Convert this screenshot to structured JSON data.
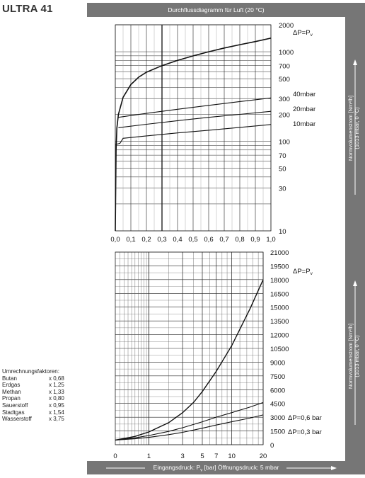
{
  "header": {
    "product": "ULTRA 41",
    "diagram_title": "Durchflussdiagramm für Luft (20 °C)",
    "bottom_label": "Eingangsdruck: Pv [bar] Öffnungsdruck: 5 mbar",
    "side_label_top": [
      "Normvolumenstrom [Nm³/h]",
      "(1013 mbar, 0 °C)"
    ],
    "side_label_bottom": [
      "Normvolumenstrom [Nm³/h]",
      "(1013 mbar, 0 °C)"
    ]
  },
  "conversion_factors": {
    "title": "Umrechnungsfaktoren:",
    "items": [
      {
        "gas": "Butan",
        "factor": "x 0,68"
      },
      {
        "gas": "Erdgas",
        "factor": "x 1,25"
      },
      {
        "gas": "Methan",
        "factor": "x 1,33"
      },
      {
        "gas": "Propan",
        "factor": "x 0,80"
      },
      {
        "gas": "Sauerstoff",
        "factor": "x 0,95"
      },
      {
        "gas": "Stadtgas",
        "factor": "x 1,54"
      },
      {
        "gas": "Wasserstoff",
        "factor": "x 3,75"
      }
    ]
  },
  "chart_data": [
    {
      "type": "line",
      "yscale": "log",
      "xlim": [
        0,
        1.0
      ],
      "ylim": [
        10,
        2000
      ],
      "x_ticks": [
        0,
        0.1,
        0.2,
        0.3,
        0.4,
        0.5,
        0.6,
        0.7,
        0.8,
        0.9,
        1.0
      ],
      "x_tick_labels": [
        "0,0",
        "0,1",
        "0,2",
        "0,3",
        "0,4",
        "0,5",
        "0,6",
        "0,7",
        "0,8",
        "0,9",
        "1,0"
      ],
      "y_tick_labels": [
        "2000",
        "1000",
        "700",
        "500",
        "300",
        "200",
        "100",
        "70",
        "50",
        "30",
        "10"
      ],
      "y_tick_values": [
        2000,
        1000,
        700,
        500,
        300,
        200,
        100,
        70,
        50,
        30,
        10
      ],
      "highlight_x": 0.3,
      "series": [
        {
          "name": "ΔP=Pv",
          "x": [
            0.0,
            0.005,
            0.01,
            0.02,
            0.05,
            0.1,
            0.15,
            0.2,
            0.3,
            0.4,
            0.5,
            0.6,
            0.7,
            0.8,
            0.9,
            1.0
          ],
          "y": [
            10,
            80,
            140,
            200,
            310,
            430,
            520,
            590,
            700,
            800,
            900,
            1000,
            1100,
            1200,
            1300,
            1420
          ]
        },
        {
          "name": "40mbar",
          "x": [
            0.02,
            0.2,
            0.4,
            0.6,
            0.8,
            1.0
          ],
          "y": [
            185,
            205,
            228,
            252,
            278,
            305
          ]
        },
        {
          "name": "20mbar",
          "x": [
            0.02,
            0.2,
            0.4,
            0.6,
            0.8,
            1.0
          ],
          "y": [
            142,
            155,
            170,
            185,
            200,
            216
          ]
        },
        {
          "name": "10mbar",
          "x": [
            0.0,
            0.03,
            0.05,
            0.2,
            0.4,
            0.6,
            0.8,
            1.0
          ],
          "y": [
            92,
            95,
            108,
            115,
            124,
            133,
            143,
            154
          ]
        }
      ],
      "series_labels": [
        "ΔP=Pv",
        "40mbar",
        "20mbar",
        "10mbar"
      ]
    },
    {
      "type": "line",
      "xscale": "log1p",
      "xlim": [
        0,
        20
      ],
      "ylim": [
        0,
        21000
      ],
      "x_ticks": [
        0,
        1,
        3,
        5,
        7,
        10,
        20
      ],
      "x_tick_labels": [
        "0",
        "1",
        "3",
        "5",
        "7",
        "10",
        "20"
      ],
      "y_tick_values": [
        21000,
        19500,
        18000,
        16500,
        15000,
        13500,
        12000,
        10500,
        9000,
        7500,
        6000,
        4500,
        3000,
        1500,
        0
      ],
      "y_tick_labels": [
        "21000",
        "19500",
        "18000",
        "16500",
        "15000",
        "13500",
        "12000",
        "10500",
        "9000",
        "7500",
        "6000",
        "4500",
        "3000",
        "1500",
        "0"
      ],
      "series": [
        {
          "name": "ΔP=Pv",
          "x": [
            0,
            0.5,
            1,
            2,
            3,
            4,
            5,
            7,
            10,
            15,
            20
          ],
          "y": [
            500,
            900,
            1400,
            2400,
            3500,
            4600,
            5800,
            8000,
            10800,
            14800,
            18000
          ]
        },
        {
          "name": "ΔP=0,6 bar",
          "x": [
            0,
            0.5,
            1,
            2,
            3,
            5,
            7,
            10,
            15,
            20
          ],
          "y": [
            500,
            750,
            1000,
            1450,
            1850,
            2500,
            3000,
            3500,
            4100,
            4600
          ]
        },
        {
          "name": "ΔP=0,3 bar",
          "x": [
            0,
            0.5,
            1,
            2,
            3,
            5,
            7,
            10,
            15,
            20
          ],
          "y": [
            500,
            650,
            800,
            1100,
            1350,
            1800,
            2150,
            2500,
            2900,
            3250
          ]
        }
      ],
      "series_labels": [
        "ΔP=Pv",
        "ΔP=0,6 bar",
        "ΔP=0,3 bar"
      ]
    }
  ]
}
